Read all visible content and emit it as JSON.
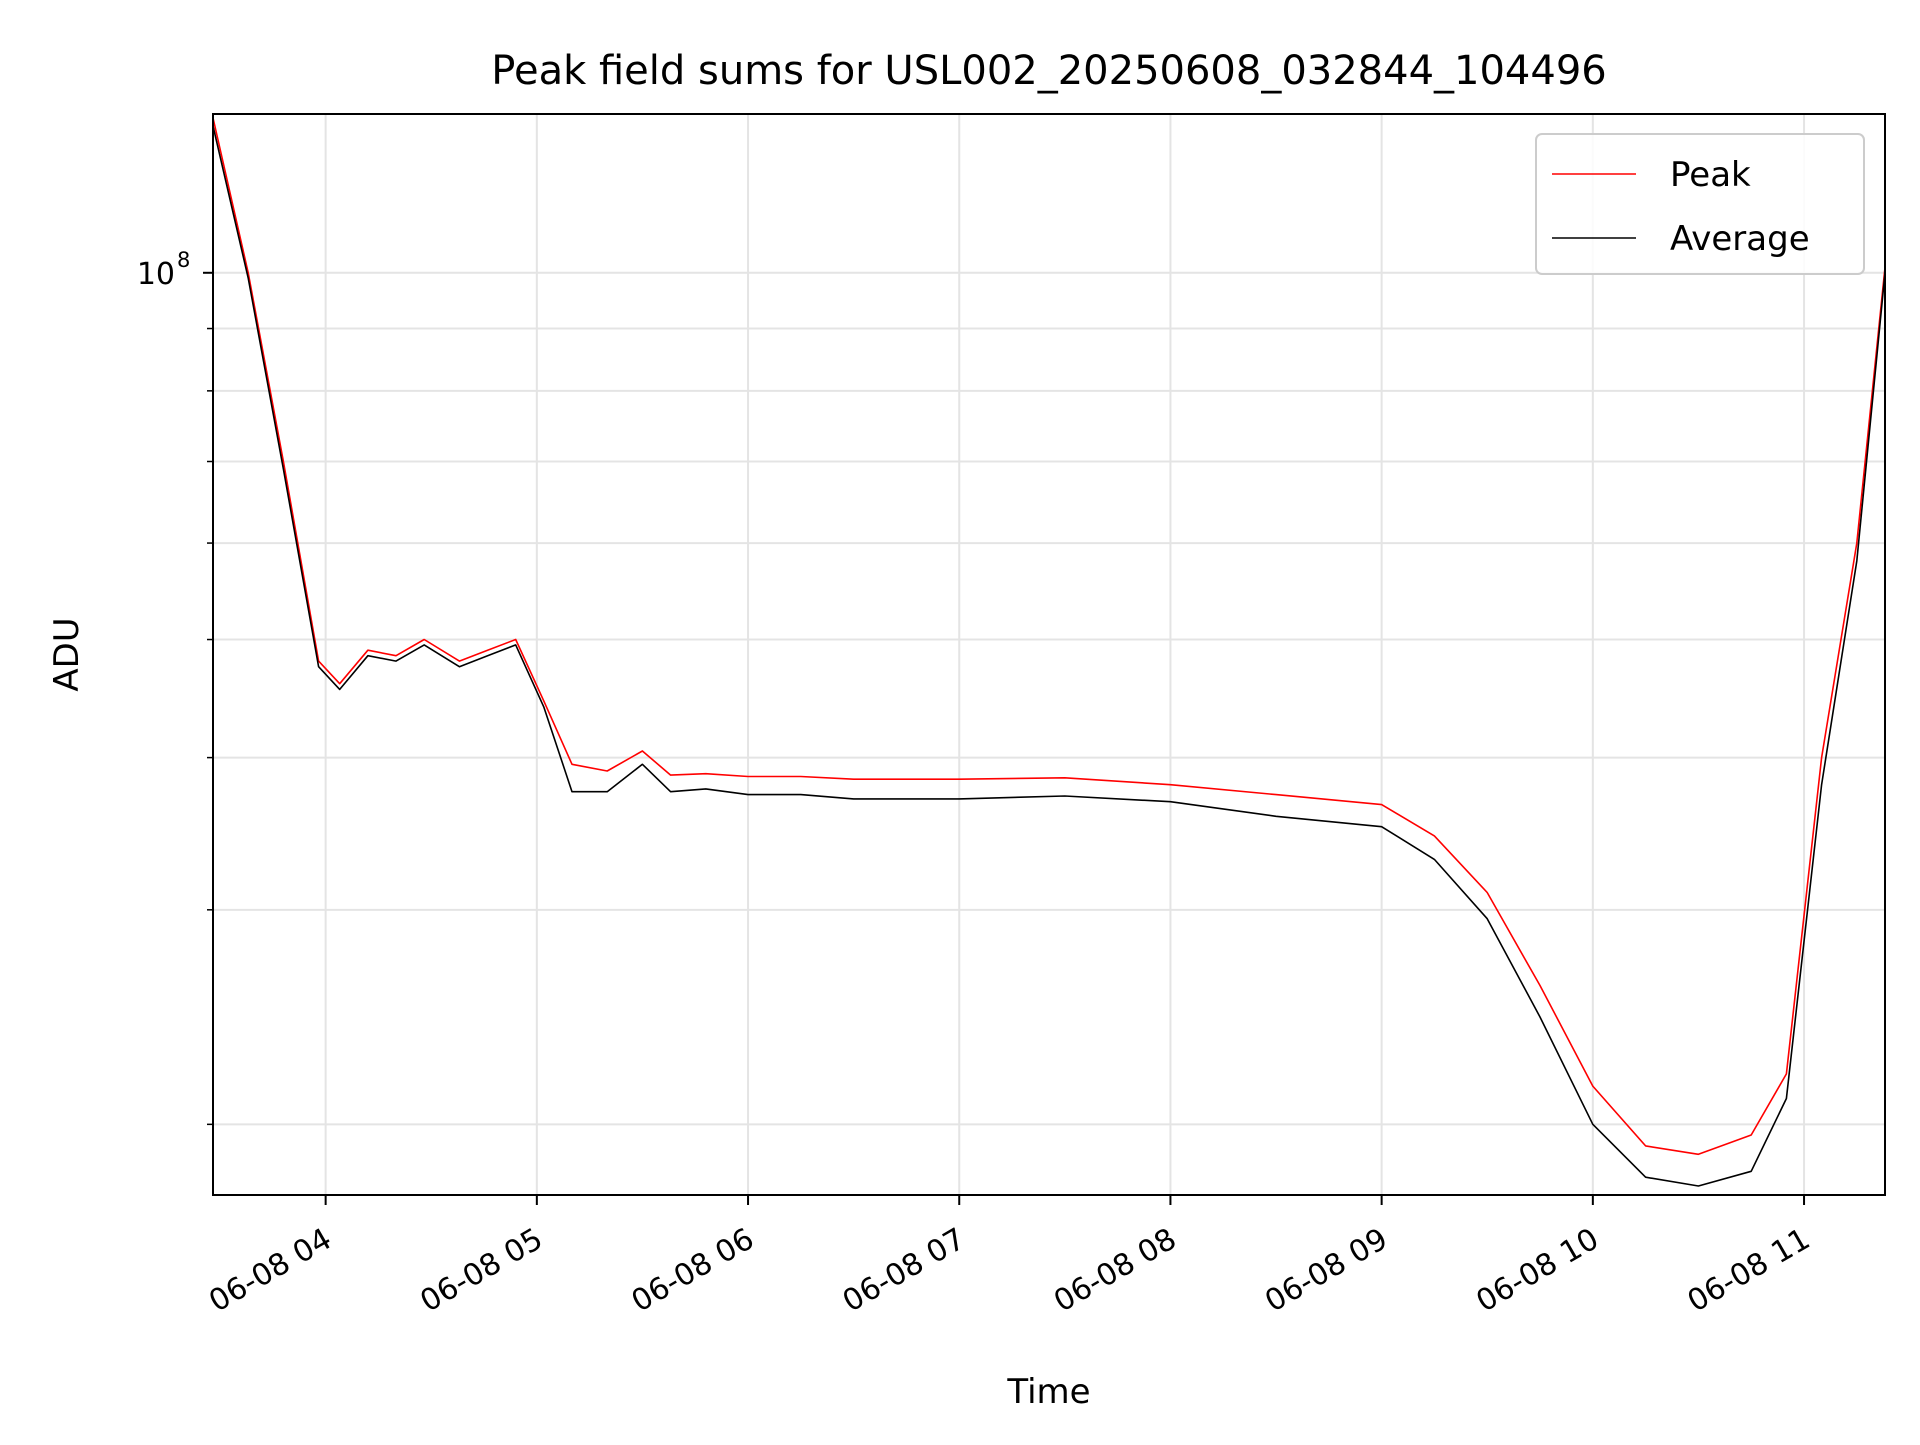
{
  "chart_data": {
    "type": "line",
    "title": "Peak field sums for USL002_20250608_032844_104496",
    "xlabel": "Time",
    "ylabel": "ADU",
    "y_scale": "log",
    "ylim": [
      17500000,
      135000000
    ],
    "xlim": [
      "2025-06-08 03:28",
      "2025-06-08 11:23"
    ],
    "grid": true,
    "legend_position": "top-right",
    "x_ticks": [
      {
        "value": "2025-06-08 04:00",
        "label": "06-08 04"
      },
      {
        "value": "2025-06-08 05:00",
        "label": "06-08 05"
      },
      {
        "value": "2025-06-08 06:00",
        "label": "06-08 06"
      },
      {
        "value": "2025-06-08 07:00",
        "label": "06-08 07"
      },
      {
        "value": "2025-06-08 08:00",
        "label": "06-08 08"
      },
      {
        "value": "2025-06-08 09:00",
        "label": "06-08 09"
      },
      {
        "value": "2025-06-08 10:00",
        "label": "06-08 10"
      },
      {
        "value": "2025-06-08 11:00",
        "label": "06-08 11"
      }
    ],
    "y_major_tick": {
      "value": 100000000,
      "label_base": "10",
      "label_exp": "8"
    },
    "y_minor_ticks": [
      20000000,
      30000000,
      40000000,
      50000000,
      60000000,
      70000000,
      80000000,
      90000000
    ],
    "y_grid_lines": [
      20000000,
      30000000,
      40000000,
      50000000,
      60000000,
      70000000,
      80000000,
      90000000,
      100000000
    ],
    "series": [
      {
        "name": "Peak",
        "color": "#ff0000",
        "x": [
          "2025-06-08 03:28",
          "2025-06-08 03:38",
          "2025-06-08 03:48",
          "2025-06-08 03:58",
          "2025-06-08 04:04",
          "2025-06-08 04:12",
          "2025-06-08 04:20",
          "2025-06-08 04:28",
          "2025-06-08 04:38",
          "2025-06-08 04:46",
          "2025-06-08 04:54",
          "2025-06-08 05:02",
          "2025-06-08 05:10",
          "2025-06-08 05:20",
          "2025-06-08 05:30",
          "2025-06-08 05:38",
          "2025-06-08 05:48",
          "2025-06-08 06:00",
          "2025-06-08 06:15",
          "2025-06-08 06:30",
          "2025-06-08 07:00",
          "2025-06-08 07:30",
          "2025-06-08 08:00",
          "2025-06-08 08:30",
          "2025-06-08 09:00",
          "2025-06-08 09:15",
          "2025-06-08 09:30",
          "2025-06-08 09:45",
          "2025-06-08 10:00",
          "2025-06-08 10:15",
          "2025-06-08 10:30",
          "2025-06-08 10:45",
          "2025-06-08 10:55",
          "2025-06-08 11:05",
          "2025-06-08 11:15",
          "2025-06-08 11:23"
        ],
        "y": [
          134000000,
          100000000,
          70000000,
          48000000,
          46000000,
          49000000,
          48500000,
          50000000,
          48000000,
          49000000,
          50000000,
          44500000,
          39500000,
          39000000,
          40500000,
          38700000,
          38800000,
          38600000,
          38600000,
          38400000,
          38400000,
          38500000,
          38000000,
          37300000,
          36600000,
          34500000,
          31000000,
          26000000,
          21500000,
          19200000,
          18900000,
          19600000,
          22000000,
          40000000,
          60000000,
          101000000
        ]
      },
      {
        "name": "Average",
        "color": "#000000",
        "x": [
          "2025-06-08 03:28",
          "2025-06-08 03:38",
          "2025-06-08 03:48",
          "2025-06-08 03:58",
          "2025-06-08 04:04",
          "2025-06-08 04:12",
          "2025-06-08 04:20",
          "2025-06-08 04:28",
          "2025-06-08 04:38",
          "2025-06-08 04:46",
          "2025-06-08 04:54",
          "2025-06-08 05:02",
          "2025-06-08 05:10",
          "2025-06-08 05:20",
          "2025-06-08 05:30",
          "2025-06-08 05:38",
          "2025-06-08 05:48",
          "2025-06-08 06:00",
          "2025-06-08 06:15",
          "2025-06-08 06:30",
          "2025-06-08 07:00",
          "2025-06-08 07:30",
          "2025-06-08 08:00",
          "2025-06-08 08:30",
          "2025-06-08 09:00",
          "2025-06-08 09:15",
          "2025-06-08 09:30",
          "2025-06-08 09:45",
          "2025-06-08 10:00",
          "2025-06-08 10:15",
          "2025-06-08 10:30",
          "2025-06-08 10:45",
          "2025-06-08 10:55",
          "2025-06-08 11:05",
          "2025-06-08 11:15",
          "2025-06-08 11:23"
        ],
        "y": [
          132000000,
          99000000,
          69000000,
          47500000,
          45500000,
          48500000,
          48000000,
          49500000,
          47500000,
          48500000,
          49500000,
          44000000,
          37500000,
          37500000,
          39500000,
          37500000,
          37700000,
          37300000,
          37300000,
          37000000,
          37000000,
          37200000,
          36800000,
          35800000,
          35100000,
          33000000,
          29500000,
          24500000,
          20000000,
          18100000,
          17800000,
          18300000,
          21000000,
          38000000,
          58000000,
          100000000
        ]
      }
    ]
  }
}
